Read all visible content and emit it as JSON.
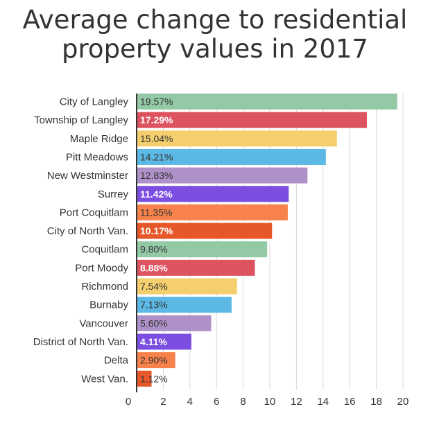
{
  "title_line1": "Average change to residential",
  "title_line2": "property values in 2017",
  "chart_data": {
    "type": "bar",
    "orientation": "horizontal",
    "title": "Average change to residential property values in 2017",
    "xlim": [
      0,
      21
    ],
    "grid": true,
    "x_ticks": [
      "0",
      "2",
      "4",
      "6",
      "8",
      "10",
      "12",
      "14",
      "16",
      "18",
      "20"
    ],
    "categories": [
      "City of Langley",
      "Township of Langley",
      "Maple Ridge",
      "Pitt Meadows",
      "New Westminster",
      "Surrey",
      "Port Coquitlam",
      "City of North Van.",
      "Coquitlam",
      "Port Moody",
      "Richmond",
      "Burnaby",
      "Vancouver",
      "District of North Van.",
      "Delta",
      "West Van."
    ],
    "values": [
      19.57,
      17.29,
      15.04,
      14.21,
      12.83,
      11.42,
      11.35,
      10.17,
      9.8,
      8.88,
      7.54,
      7.13,
      5.6,
      4.11,
      2.9,
      1.12
    ],
    "value_labels": [
      "19.57%",
      "17.29%",
      "15.04%",
      "14.21%",
      "12.83%",
      "11.42%",
      "11.35%",
      "10.17%",
      "9.80%",
      "8.88%",
      "7.54%",
      "7.13%",
      "5.60%",
      "4.11%",
      "2.90%",
      "1.12%"
    ],
    "colors": [
      "#93c9a5",
      "#dd5360",
      "#f5cf6e",
      "#5cb8e4",
      "#ad91c8",
      "#7b4de0",
      "#f8824b",
      "#e65829",
      "#93c9a5",
      "#dd5360",
      "#f5cf6e",
      "#5cb8e4",
      "#ad91c8",
      "#7b4de0",
      "#f8824b",
      "#e65829"
    ],
    "label_colors": [
      "#333333",
      "#ffffff",
      "#333333",
      "#333333",
      "#333333",
      "#ffffff",
      "#333333",
      "#ffffff",
      "#333333",
      "#ffffff",
      "#333333",
      "#333333",
      "#333333",
      "#ffffff",
      "#333333",
      "#333333"
    ]
  }
}
